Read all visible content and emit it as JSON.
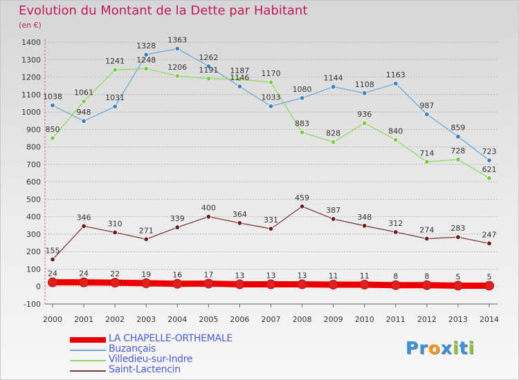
{
  "title": "Evolution du Montant de la Dette par Habitant",
  "subtitle": "(en €)",
  "logo": {
    "letters": [
      {
        "ch": "P",
        "color": "#3d8fd6"
      },
      {
        "ch": "r",
        "color": "#3d8fd6"
      },
      {
        "ch": "o",
        "color": "#f39c12"
      },
      {
        "ch": "x",
        "color": "#3d8fd6"
      },
      {
        "ch": "i",
        "color": "#8cc63f"
      },
      {
        "ch": "t",
        "color": "#3d8fd6"
      },
      {
        "ch": "i",
        "color": "#8cc63f"
      }
    ]
  },
  "chart_data": {
    "type": "line",
    "title": "Evolution du Montant de la Dette par Habitant",
    "subtitle": "(en €)",
    "xlabel": "",
    "ylabel": "",
    "x": [
      "2000",
      "2001",
      "2002",
      "2003",
      "2004",
      "2005",
      "2006",
      "2007",
      "2008",
      "2009",
      "2010",
      "2011",
      "2012",
      "2013",
      "2014"
    ],
    "ylim": [
      -100,
      1400
    ],
    "yticks": [
      -100,
      0,
      100,
      200,
      300,
      400,
      500,
      600,
      700,
      800,
      900,
      1000,
      1100,
      1200,
      1300,
      1400
    ],
    "grid": "horizontal-dashed",
    "legend_position": "bottom-left",
    "series": [
      {
        "name": "LA CHAPELLE-ORTHEMALE",
        "color": "#ee0000",
        "marker_color": "#e02020",
        "emphasis": true,
        "values": [
          24,
          24,
          22,
          19,
          16,
          17,
          13,
          13,
          13,
          11,
          11,
          8,
          8,
          5,
          5
        ],
        "labels": [
          "24",
          "24",
          "22",
          "19",
          "16",
          "17",
          "13",
          "13",
          "13",
          "11",
          "11",
          "8",
          "8",
          "5",
          "5"
        ]
      },
      {
        "name": "Buzançais",
        "color": "#6ea8d8",
        "marker_color": "#3d7fc0",
        "values": [
          1038,
          948,
          1031,
          1328,
          1363,
          1262,
          1146,
          1033,
          1080,
          1144,
          1108,
          1163,
          987,
          859,
          723
        ],
        "labels": [
          "1038",
          "948",
          "1031",
          "1328",
          "1363",
          "1262",
          "1146",
          "1033",
          "1080",
          "1144",
          "1108",
          "1163",
          "987",
          "859",
          "723"
        ]
      },
      {
        "name": "Villedieu-sur-Indre",
        "color": "#90d860",
        "marker_color": "#7ac943",
        "values": [
          850,
          1061,
          1241,
          1248,
          1206,
          1191,
          1187,
          1170,
          883,
          828,
          936,
          840,
          714,
          728,
          621
        ],
        "labels": [
          "850",
          "1061",
          "1241",
          "1248",
          "1206",
          "1191",
          "1187",
          "1170",
          "883",
          "828",
          "936",
          "840",
          "714",
          "728",
          "621"
        ]
      },
      {
        "name": "Saint-Lactencin",
        "color": "#7b3a3a",
        "marker_color": "#6b1e1e",
        "values": [
          155,
          346,
          310,
          271,
          339,
          400,
          364,
          331,
          459,
          387,
          348,
          312,
          274,
          283,
          247
        ],
        "labels": [
          "155",
          "346",
          "310",
          "271",
          "339",
          "400",
          "364",
          "331",
          "459",
          "387",
          "348",
          "312",
          "274",
          "283",
          "247"
        ]
      }
    ]
  }
}
